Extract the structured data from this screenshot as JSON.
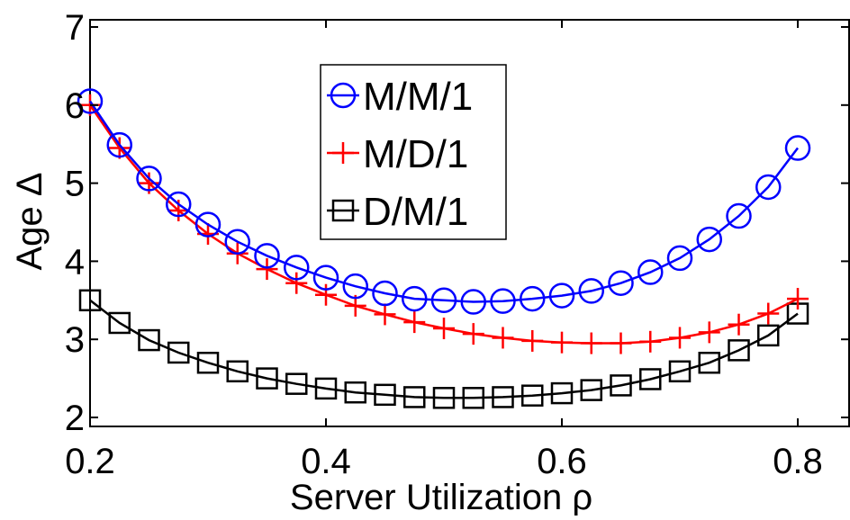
{
  "chart_data": {
    "type": "line",
    "title": "",
    "xlabel": "Server Utilization ρ",
    "ylabel": "Age Δ",
    "xlim": [
      0.2,
      0.8
    ],
    "ylim": [
      2,
      7
    ],
    "xticks": [
      0.2,
      0.4,
      0.6,
      0.8
    ],
    "yticks": [
      2,
      3,
      4,
      5,
      6,
      7
    ],
    "x_tick_labels": [
      "0.2",
      "0.4",
      "0.6",
      "0.8"
    ],
    "y_tick_labels": [
      "2",
      "3",
      "4",
      "5",
      "6",
      "7"
    ],
    "grid": false,
    "legend": {
      "placement": "top-center"
    },
    "x": [
      0.2,
      0.225,
      0.25,
      0.275,
      0.3,
      0.325,
      0.35,
      0.375,
      0.4,
      0.425,
      0.45,
      0.475,
      0.5,
      0.525,
      0.55,
      0.575,
      0.6,
      0.625,
      0.65,
      0.675,
      0.7,
      0.725,
      0.75,
      0.775,
      0.8
    ],
    "series": [
      {
        "name": "M/M/1",
        "color": "#0000ff",
        "marker": "circle",
        "values": [
          6.05,
          5.49,
          5.06,
          4.73,
          4.47,
          4.25,
          4.07,
          3.92,
          3.79,
          3.68,
          3.59,
          3.52,
          3.5,
          3.48,
          3.49,
          3.52,
          3.56,
          3.62,
          3.72,
          3.86,
          4.04,
          4.28,
          4.58,
          4.95,
          5.45
        ]
      },
      {
        "name": "M/D/1",
        "color": "#ff0000",
        "marker": "plus",
        "values": [
          6.0,
          5.45,
          5.0,
          4.65,
          4.35,
          4.1,
          3.9,
          3.72,
          3.57,
          3.43,
          3.32,
          3.22,
          3.14,
          3.07,
          3.02,
          2.98,
          2.96,
          2.95,
          2.95,
          2.97,
          3.02,
          3.09,
          3.19,
          3.33,
          3.52
        ]
      },
      {
        "name": "D/M/1",
        "color": "#000000",
        "marker": "square",
        "values": [
          3.5,
          3.21,
          2.99,
          2.83,
          2.7,
          2.59,
          2.5,
          2.43,
          2.37,
          2.32,
          2.29,
          2.26,
          2.25,
          2.25,
          2.26,
          2.28,
          2.31,
          2.35,
          2.41,
          2.49,
          2.59,
          2.7,
          2.86,
          3.05,
          3.33
        ]
      }
    ]
  }
}
